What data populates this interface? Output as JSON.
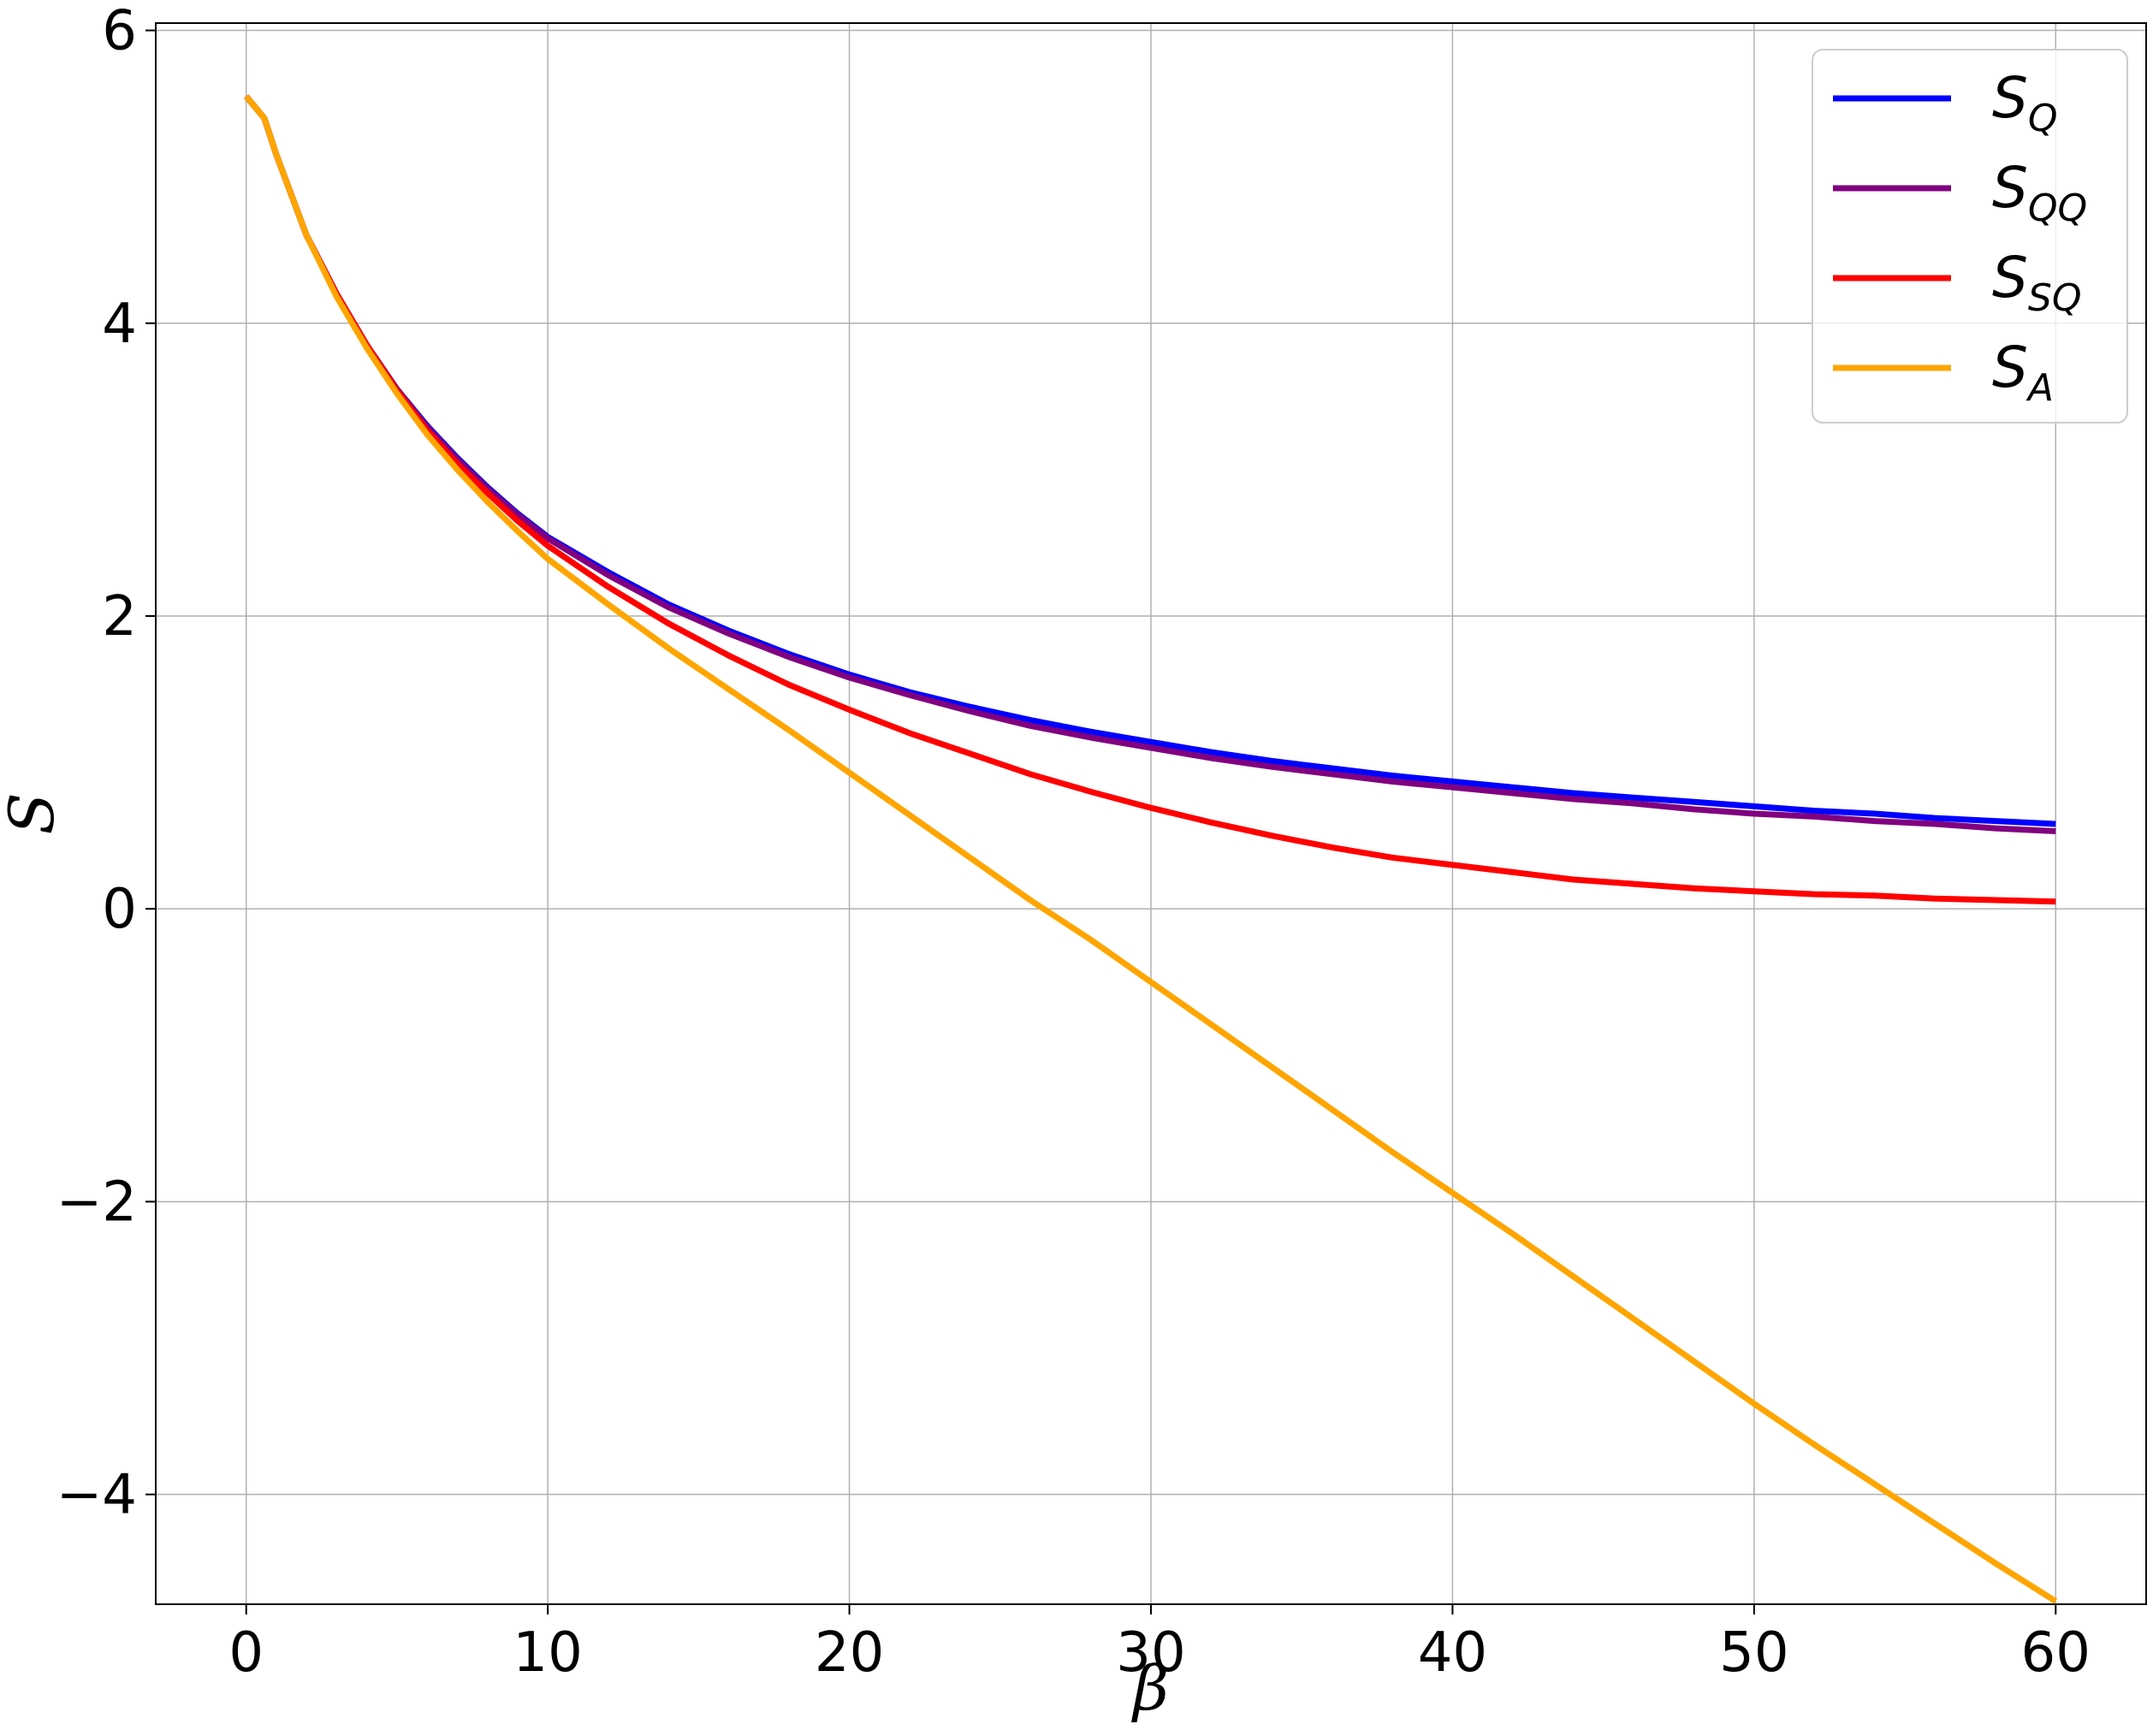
{
  "chart_data": {
    "type": "line",
    "title": "",
    "xlabel": "β",
    "ylabel": "S",
    "xlim": [
      -3,
      63
    ],
    "ylim": [
      -4.75,
      6.05
    ],
    "xticks": [
      0,
      10,
      20,
      30,
      40,
      50,
      60
    ],
    "yticks": [
      -4,
      -2,
      0,
      2,
      4,
      6
    ],
    "xtick_labels": [
      "0",
      "10",
      "20",
      "30",
      "40",
      "50",
      "60"
    ],
    "ytick_labels": [
      "−4",
      "−2",
      "0",
      "2",
      "4",
      "6"
    ],
    "grid": true,
    "legend_position": "top-right",
    "x": [
      0,
      0.6,
      1,
      2,
      3,
      4,
      5,
      6,
      7,
      8,
      9,
      10,
      12,
      14,
      16,
      18,
      20,
      22,
      24,
      26,
      28,
      30,
      32,
      34,
      36,
      38,
      40,
      42,
      44,
      46,
      48,
      50,
      52,
      54,
      56,
      58,
      60
    ],
    "series": [
      {
        "name": "S_Q",
        "base": "S",
        "sub": "Q",
        "color": "#0000ff",
        "values": [
          5.55,
          5.4,
          5.15,
          4.6,
          4.2,
          3.85,
          3.55,
          3.3,
          3.08,
          2.88,
          2.7,
          2.54,
          2.3,
          2.08,
          1.9,
          1.74,
          1.6,
          1.48,
          1.38,
          1.29,
          1.21,
          1.14,
          1.07,
          1.01,
          0.96,
          0.91,
          0.87,
          0.83,
          0.79,
          0.76,
          0.73,
          0.7,
          0.67,
          0.65,
          0.62,
          0.6,
          0.58
        ]
      },
      {
        "name": "S_QQ",
        "base": "S",
        "sub": "QQ",
        "color": "#800080",
        "values": [
          5.55,
          5.4,
          5.15,
          4.6,
          4.2,
          3.85,
          3.55,
          3.29,
          3.07,
          2.87,
          2.69,
          2.53,
          2.28,
          2.06,
          1.88,
          1.72,
          1.58,
          1.46,
          1.35,
          1.25,
          1.17,
          1.1,
          1.03,
          0.97,
          0.92,
          0.87,
          0.83,
          0.79,
          0.75,
          0.72,
          0.68,
          0.65,
          0.63,
          0.6,
          0.58,
          0.55,
          0.53
        ]
      },
      {
        "name": "S_SQ",
        "base": "S",
        "sub": "SQ",
        "color": "#ff0000",
        "values": [
          5.55,
          5.4,
          5.15,
          4.6,
          4.2,
          3.85,
          3.54,
          3.27,
          3.04,
          2.84,
          2.65,
          2.48,
          2.2,
          1.95,
          1.73,
          1.53,
          1.36,
          1.2,
          1.06,
          0.92,
          0.8,
          0.69,
          0.59,
          0.5,
          0.42,
          0.35,
          0.3,
          0.25,
          0.2,
          0.17,
          0.14,
          0.12,
          0.1,
          0.09,
          0.07,
          0.06,
          0.05
        ]
      },
      {
        "name": "S_A",
        "base": "S",
        "sub": "A",
        "color": "#ffa500",
        "values": [
          5.55,
          5.4,
          5.15,
          4.6,
          4.18,
          3.83,
          3.52,
          3.24,
          3.0,
          2.78,
          2.58,
          2.39,
          2.08,
          1.78,
          1.5,
          1.22,
          0.93,
          0.64,
          0.35,
          0.06,
          -0.21,
          -0.5,
          -0.79,
          -1.08,
          -1.37,
          -1.66,
          -1.94,
          -2.22,
          -2.51,
          -2.8,
          -3.09,
          -3.38,
          -3.66,
          -3.93,
          -4.2,
          -4.47,
          -4.73
        ]
      }
    ]
  }
}
